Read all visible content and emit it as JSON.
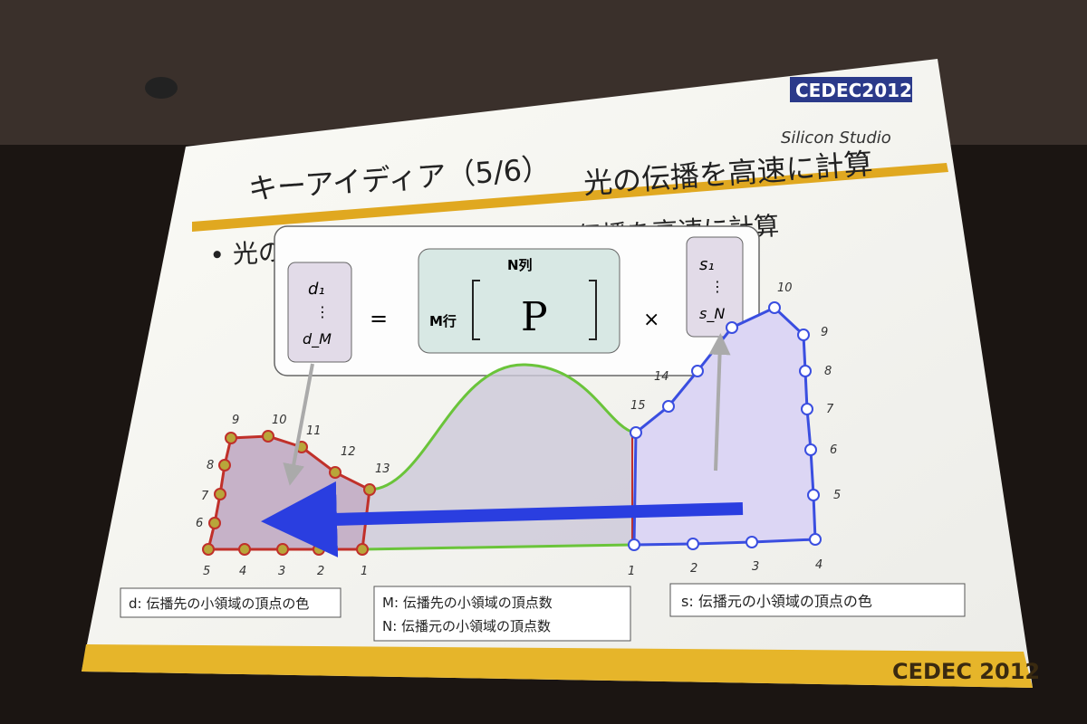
{
  "slide": {
    "title": "キーアイディア（5/6）",
    "subtitle": "光の伝播を高速に計算",
    "bullet": "光の伝播行列Pを利用して光の伝播を高速に計算",
    "logo_cedec": "CEDEC2012",
    "logo_company": "Silicon Studio",
    "footer": "CEDEC 2012"
  },
  "formula": {
    "d_top": "d₁",
    "d_dots": "⋮",
    "d_bottom": "d_M",
    "equals": "=",
    "rows_label": "M行",
    "cols_label": "N列",
    "matrix": "P",
    "times": "×",
    "s_top": "s₁",
    "s_dots": "⋮",
    "s_bottom": "s_N"
  },
  "diagram": {
    "left_labels": [
      "1",
      "2",
      "3",
      "4",
      "5",
      "6",
      "7",
      "8",
      "9",
      "10",
      "11",
      "12",
      "13"
    ],
    "right_labels": [
      "1",
      "2",
      "3",
      "4",
      "5",
      "6",
      "7",
      "8",
      "9",
      "10",
      "14",
      "15"
    ]
  },
  "legend": {
    "d": "d: 伝播先の小領域の頂点の色",
    "m": "M: 伝播先の小領域の頂点数",
    "n": "N: 伝播元の小領域の頂点数",
    "s": "s: 伝播元の小領域の頂点の色"
  },
  "colors": {
    "accent": "#e0a820",
    "left_outline": "#c0302a",
    "right_outline": "#3a4ee0",
    "curve": "#6ac43a",
    "arrow": "#2a3ee0"
  }
}
